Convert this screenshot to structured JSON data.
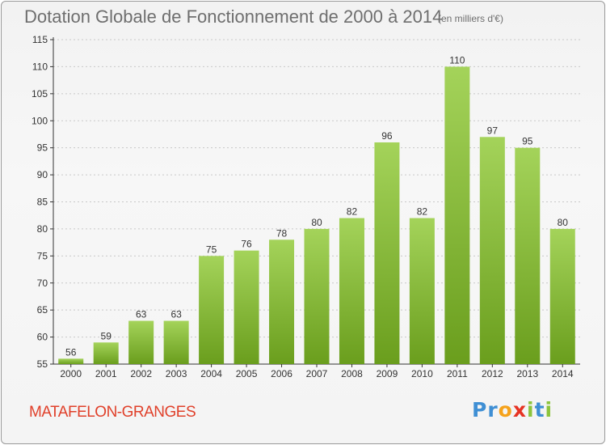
{
  "title": "Dotation Globale de Fonctionnement de 2000 à 2014",
  "subtitle": "(en milliers d'€)",
  "commune": "MATAFELON-GRANGES",
  "logo": {
    "letters": [
      {
        "ch": "P",
        "color": "#3f8fd4"
      },
      {
        "ch": "r",
        "color": "#3f8fd4"
      },
      {
        "ch": "o",
        "color": "#f5a21b"
      },
      {
        "ch": "x",
        "color": "#e63323"
      },
      {
        "ch": "i",
        "color": "#8cc43c"
      },
      {
        "ch": "t",
        "color": "#3f8fd4"
      },
      {
        "ch": "i",
        "color": "#8cc43c"
      }
    ]
  },
  "colors": {
    "bar_light": "#a4d35a",
    "bar_dark": "#6a9e1d",
    "axis": "#333333",
    "grid": "#c8c8c8",
    "title": "#6e6e6e",
    "commune": "#e0402a"
  },
  "chart_data": {
    "type": "bar",
    "categories": [
      "2000",
      "2001",
      "2002",
      "2003",
      "2004",
      "2005",
      "2006",
      "2007",
      "2008",
      "2009",
      "2010",
      "2011",
      "2012",
      "2013",
      "2014"
    ],
    "values": [
      56,
      59,
      63,
      63,
      75,
      76,
      78,
      80,
      82,
      96,
      82,
      110,
      97,
      95,
      80
    ],
    "ylim": [
      55,
      115
    ],
    "yticks": [
      55,
      60,
      65,
      70,
      75,
      80,
      85,
      90,
      95,
      100,
      105,
      110,
      115
    ],
    "grid": true,
    "data_labels": true
  }
}
